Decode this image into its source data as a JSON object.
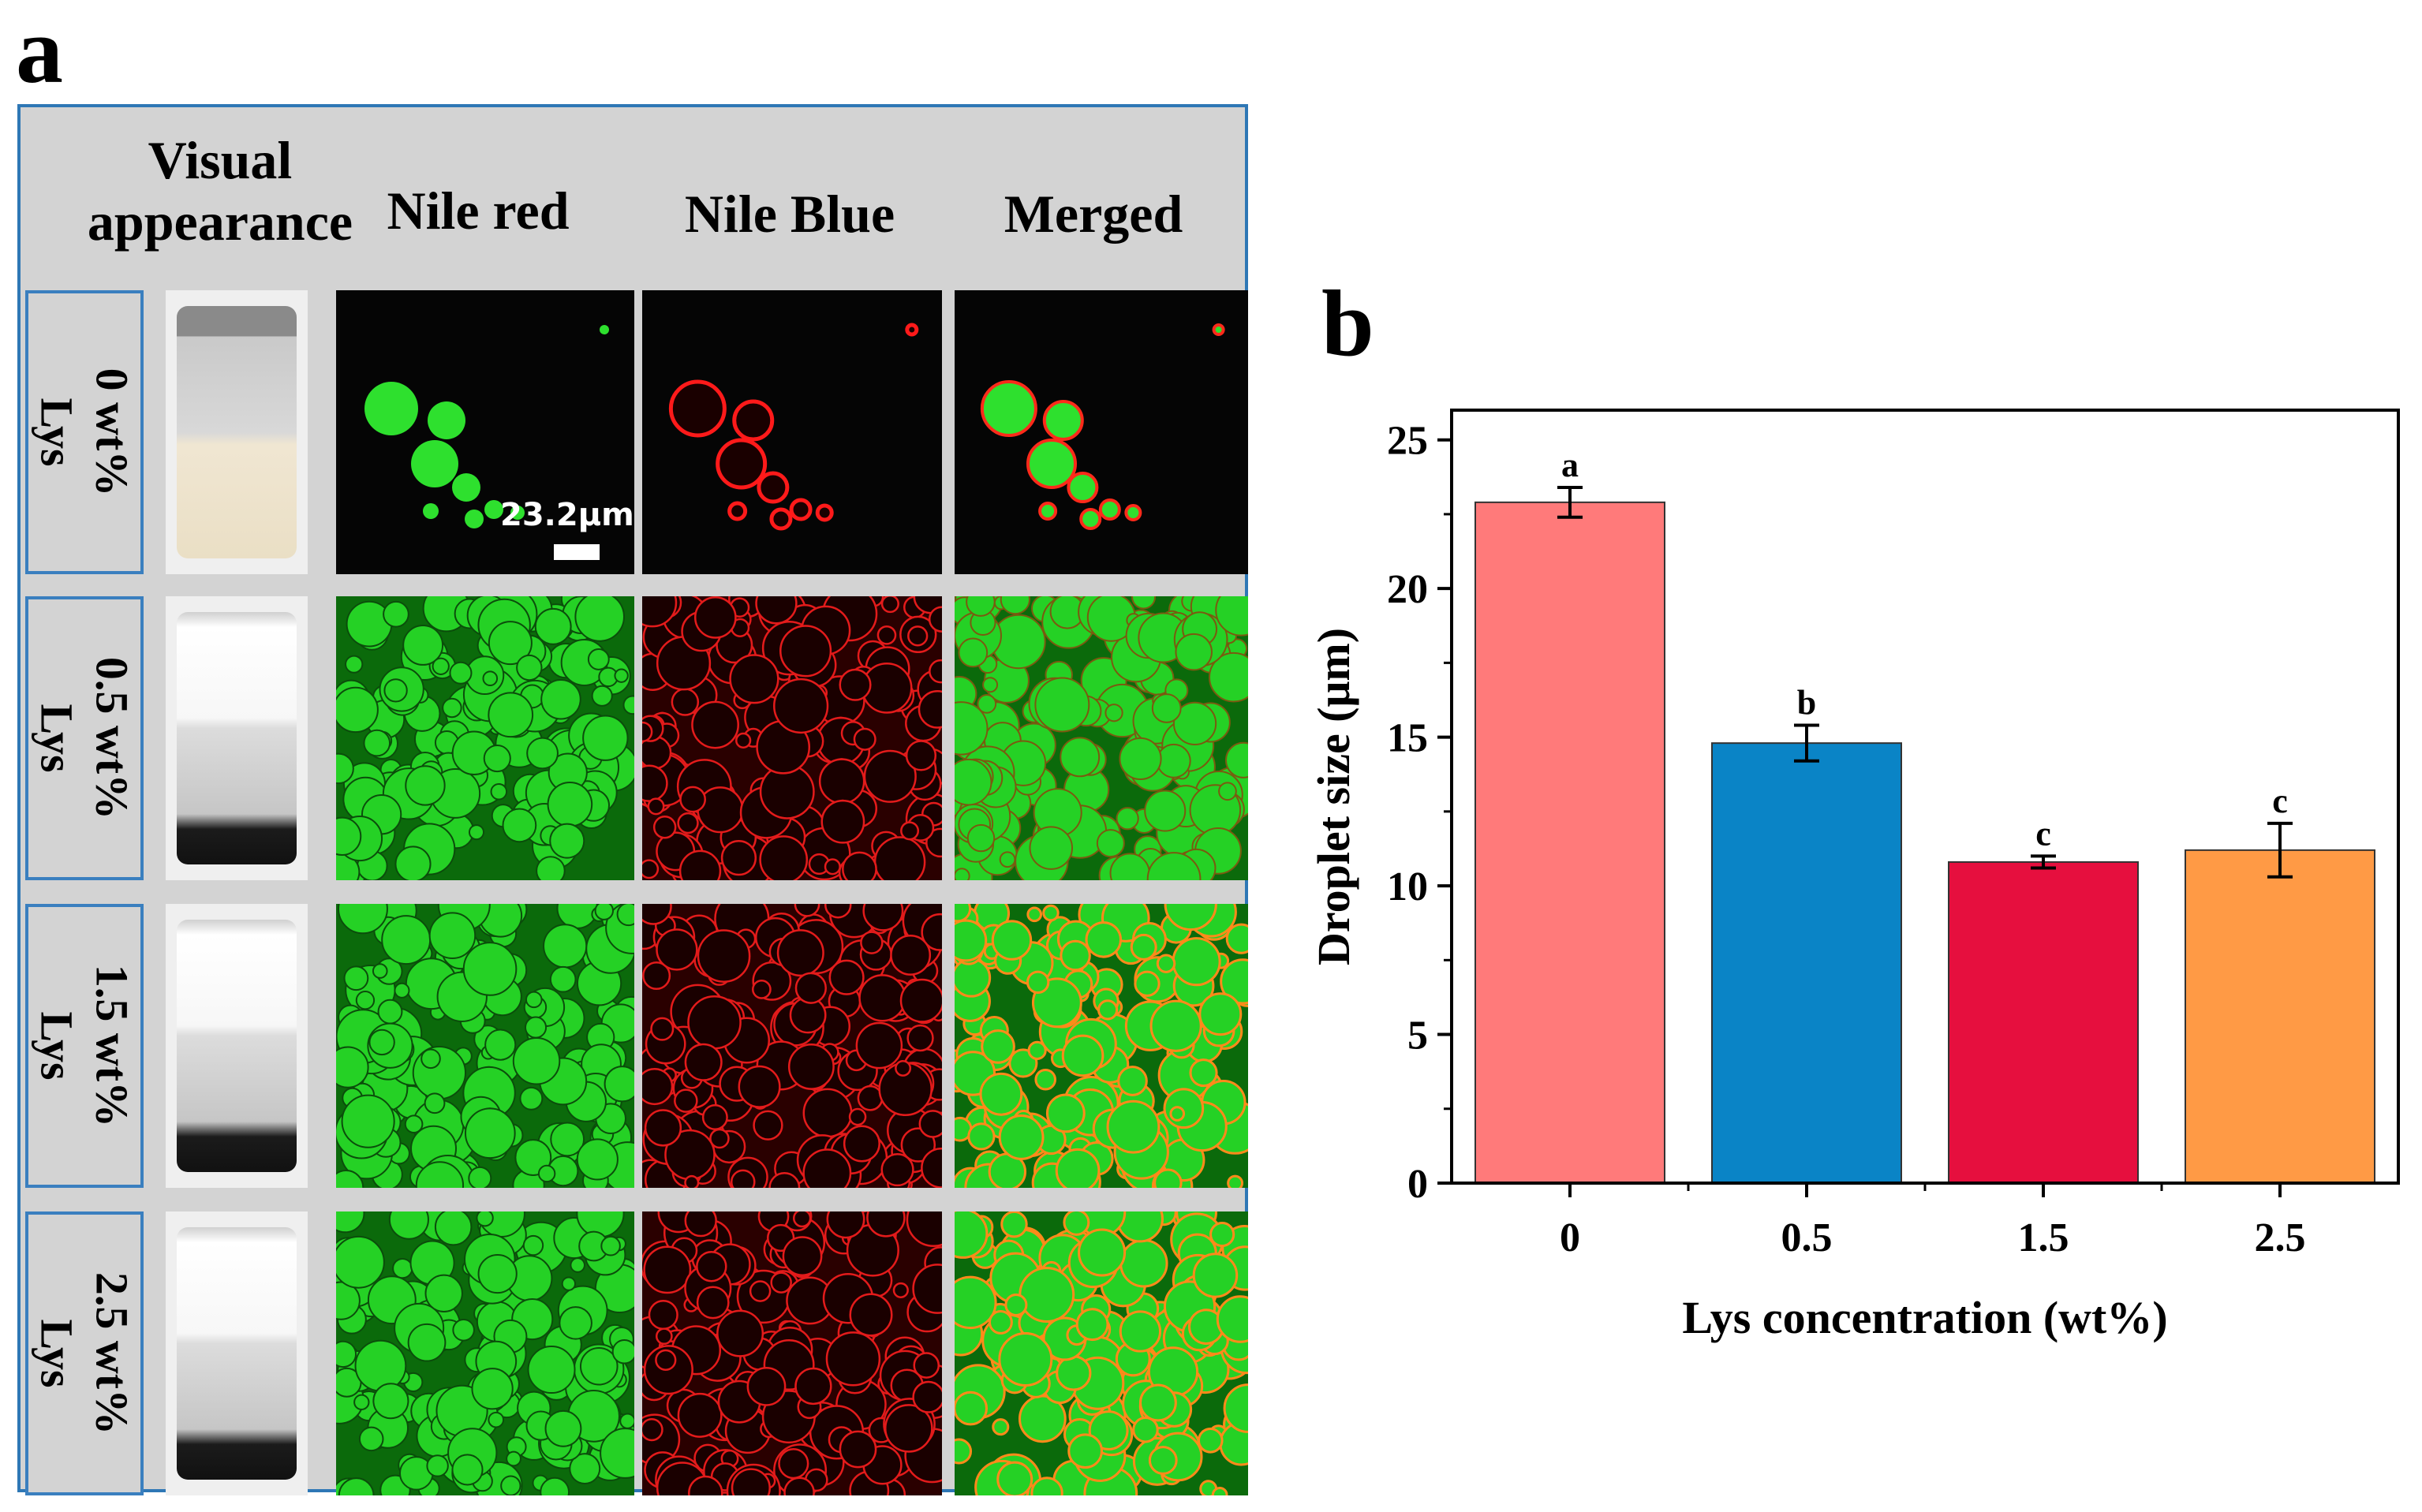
{
  "panel_a": {
    "letter": "a",
    "headers": {
      "visual": [
        "Visual",
        "appearance"
      ],
      "nile_red": "Nile red",
      "nile_blue": "Nile Blue",
      "merged": "Merged"
    },
    "rows": [
      {
        "label": [
          "0 wt%",
          "Lys"
        ]
      },
      {
        "label": [
          "0.5 wt%",
          "Lys"
        ]
      },
      {
        "label": [
          "1.5 wt%",
          "Lys"
        ]
      },
      {
        "label": [
          "2.5 wt%",
          "Lys"
        ]
      }
    ],
    "scale_bar": "23.2μm"
  },
  "panel_b": {
    "letter": "b"
  },
  "chart_data": {
    "type": "bar",
    "categories": [
      "0",
      "0.5",
      "1.5",
      "2.5"
    ],
    "values": [
      22.9,
      14.8,
      10.8,
      11.2
    ],
    "errors": [
      0.5,
      0.6,
      0.2,
      0.9
    ],
    "significance": [
      "a",
      "b",
      "c",
      "c"
    ],
    "bar_colors": [
      "#ff7a7a",
      "#0a84c6",
      "#e60f3e",
      "#ff9a45"
    ],
    "title": "",
    "xlabel": "Lys concentration (wt%)",
    "ylabel": "Droplet size (μm)",
    "ylim": [
      0,
      26
    ],
    "yticks": [
      0,
      5,
      10,
      15,
      20,
      25
    ]
  }
}
